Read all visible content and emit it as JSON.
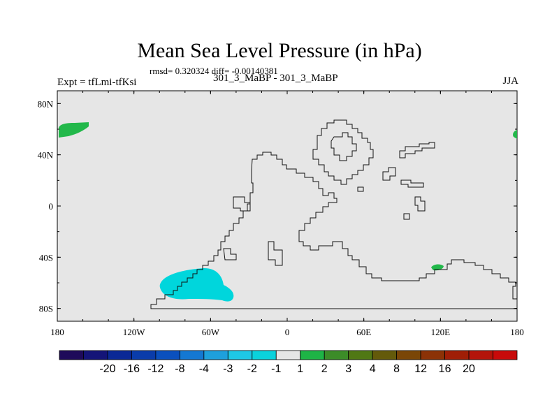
{
  "title": "Mean Sea Level Pressure (in hPa)",
  "stats": "rmsd= 0.320324 diff= -0.00140381",
  "left_label": "Expt = tfLmi-tfKsi",
  "center_label": "301_3_MaBP - 301_3_MaBP",
  "right_label": "JJA",
  "chart_data": {
    "type": "heatmap",
    "title": "Mean Sea Level Pressure (in hPa)",
    "xlabel": "",
    "ylabel": "",
    "xlim": [
      -180,
      180
    ],
    "ylim": [
      -90,
      90
    ],
    "x_ticks": [
      {
        "value": -180,
        "label": "180"
      },
      {
        "value": -120,
        "label": "120W"
      },
      {
        "value": -60,
        "label": "60W"
      },
      {
        "value": 0,
        "label": "0"
      },
      {
        "value": 60,
        "label": "60E"
      },
      {
        "value": 120,
        "label": "120E"
      },
      {
        "value": 180,
        "label": "180"
      }
    ],
    "y_ticks": [
      {
        "value": 80,
        "label": "80N"
      },
      {
        "value": 40,
        "label": "40N"
      },
      {
        "value": 0,
        "label": "0"
      },
      {
        "value": -40,
        "label": "40S"
      },
      {
        "value": -80,
        "label": "80S"
      }
    ],
    "colorbar": {
      "colors": [
        "#1e0a5a",
        "#141478",
        "#0a2896",
        "#0a3caa",
        "#0a50be",
        "#1478d2",
        "#1ea0dc",
        "#1ec8e6",
        "#0ad2dc",
        "#e6e6e6",
        "#1eb446",
        "#3c8c28",
        "#507814",
        "#645a0a",
        "#7a4606",
        "#8c3206",
        "#a01e06",
        "#b4140a",
        "#c80a0a"
      ],
      "labels": [
        "-20",
        "-16",
        "-12",
        "-8",
        "-4",
        "-3",
        "-2",
        "-1",
        "1",
        "2",
        "3",
        "4",
        "8",
        "12",
        "16",
        "20"
      ]
    },
    "anomalies": [
      {
        "name": "north-pacific-positive",
        "color": "#22b84a",
        "lon": -170,
        "lat": 59,
        "category": "1 to 2"
      },
      {
        "name": "east-edge-positive",
        "color": "#22b84a",
        "lon": 178,
        "lat": 55,
        "category": "1 to 2"
      },
      {
        "name": "south-pacific-negative",
        "color": "#00d6dc",
        "lon": -75,
        "lat": -63,
        "category": "-2 to -1"
      },
      {
        "name": "south-indian-positive",
        "color": "#22b84a",
        "lon": 119,
        "lat": -48,
        "category": "1 to 2"
      }
    ]
  }
}
